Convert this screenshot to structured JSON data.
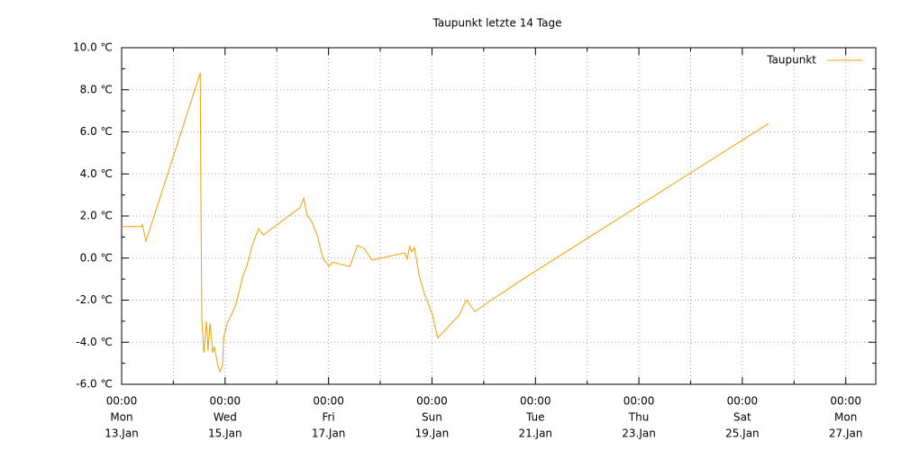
{
  "chart_data": {
    "type": "line",
    "title": "Taupunkt letzte 14 Tage",
    "xlim": [
      0,
      14.58
    ],
    "xticks": [
      {
        "value": 0,
        "label": [
          "00:00",
          "Mon",
          "13.Jan"
        ]
      },
      {
        "value": 2,
        "label": [
          "00:00",
          "Wed",
          "15.Jan"
        ]
      },
      {
        "value": 4,
        "label": [
          "00:00",
          "Fri",
          "17.Jan"
        ]
      },
      {
        "value": 6,
        "label": [
          "00:00",
          "Sun",
          "19.Jan"
        ]
      },
      {
        "value": 8,
        "label": [
          "00:00",
          "Tue",
          "21.Jan"
        ]
      },
      {
        "value": 10,
        "label": [
          "00:00",
          "Thu",
          "23.Jan"
        ]
      },
      {
        "value": 12,
        "label": [
          "00:00",
          "Sat",
          "25.Jan"
        ]
      },
      {
        "value": 14,
        "label": [
          "00:00",
          "Mon",
          "27.Jan"
        ]
      }
    ],
    "xminorticks": [
      1,
      3,
      5,
      7,
      9,
      11,
      13
    ],
    "ylim": [
      -6,
      10
    ],
    "yticks": [
      {
        "value": -6,
        "label": "-6.0 ℃"
      },
      {
        "value": -4,
        "label": "-4.0 ℃"
      },
      {
        "value": -2,
        "label": "-2.0 ℃"
      },
      {
        "value": 0,
        "label": "0.0 ℃"
      },
      {
        "value": 2,
        "label": "2.0 ℃"
      },
      {
        "value": 4,
        "label": "4.0 ℃"
      },
      {
        "value": 6,
        "label": "6.0 ℃"
      },
      {
        "value": 8,
        "label": "8.0 ℃"
      },
      {
        "value": 10,
        "label": "10.0 ℃"
      }
    ],
    "yminorticks": [
      -5,
      -3,
      -1,
      1,
      3,
      5,
      7,
      9
    ],
    "grid": true,
    "legend": "top-right",
    "x": [
      0,
      0.38,
      0.4,
      0.47,
      1.52,
      1.53,
      1.55,
      1.59,
      1.64,
      1.67,
      1.71,
      1.76,
      1.79,
      1.86,
      1.9,
      1.95,
      1.97,
      2.04,
      2.14,
      2.21,
      2.35,
      2.42,
      2.53,
      2.65,
      2.74,
      3.45,
      3.52,
      3.59,
      3.66,
      3.78,
      3.89,
      4.01,
      4.08,
      4.41,
      4.56,
      4.69,
      4.84,
      4.93,
      5.47,
      5.52,
      5.57,
      5.61,
      5.66,
      5.75,
      5.84,
      6.01,
      6.11,
      6.53,
      6.64,
      6.67,
      6.83,
      7.14,
      7.46,
      7.63,
      12.51
    ],
    "series": [
      {
        "name": "Taupunkt",
        "color": "#f0a000",
        "values": [
          1.5,
          1.5,
          1.6,
          0.8,
          8.8,
          3.7,
          -2.9,
          -4.5,
          -3.0,
          -4.4,
          -3.1,
          -4.5,
          -4.2,
          -5.1,
          -5.4,
          -5.1,
          -3.8,
          -3.1,
          -2.6,
          -2.2,
          -0.8,
          -0.4,
          0.65,
          1.4,
          1.1,
          2.4,
          2.85,
          2.0,
          1.8,
          1.1,
          0.0,
          -0.4,
          -0.2,
          -0.4,
          0.6,
          0.45,
          -0.1,
          -0.05,
          0.25,
          -0.05,
          0.55,
          0.3,
          0.5,
          -0.8,
          -1.6,
          -2.7,
          -3.8,
          -2.7,
          -2.1,
          -2.0,
          -2.55,
          -2.0,
          -1.5,
          -1.2,
          6.4
        ]
      }
    ]
  }
}
